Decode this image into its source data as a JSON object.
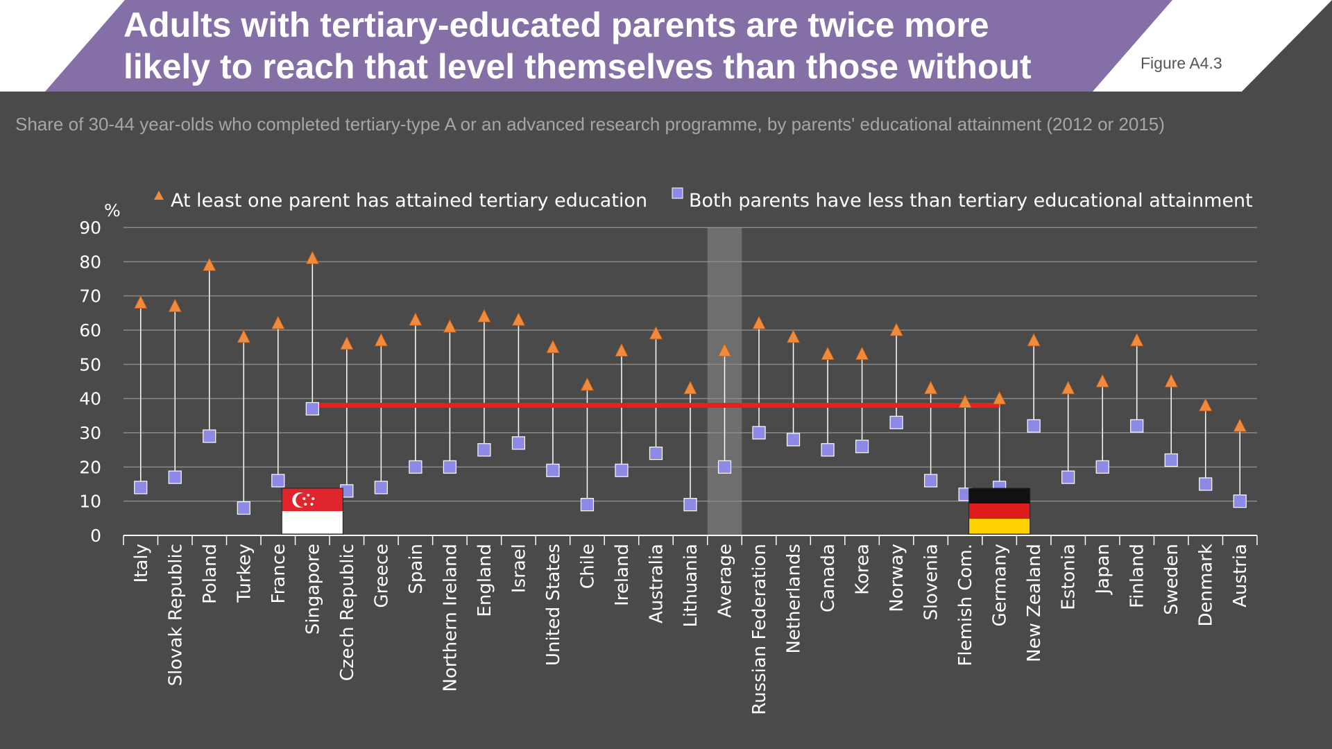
{
  "header": {
    "title_line1": "Adults with tertiary-educated parents are twice more",
    "title_line2": "likely to reach that level themselves than those without",
    "figure_label": "Figure A4.3",
    "subtitle": "Share of 30-44 year-olds who completed tertiary-type A or an advanced research programme, by parents' educational attainment (2012 or 2015)"
  },
  "colors": {
    "header_purple": "#8470a6",
    "triangle": "#f08a3c",
    "square": "#8c8ae6",
    "highlight_line": "#e8201c",
    "average_band": "#6e6e6e",
    "axis": "#ffffff",
    "grid": "#8a8a8a"
  },
  "chart_data": {
    "type": "scatter",
    "ylabel": "%",
    "ylim": [
      0,
      90
    ],
    "yticks": [
      0,
      10,
      20,
      30,
      40,
      50,
      60,
      70,
      80,
      90
    ],
    "grid": true,
    "legend_position": "top",
    "categories": [
      "Italy",
      "Slovak Republic",
      "Poland",
      "Turkey",
      "France",
      "Singapore",
      "Czech Republic",
      "Greece",
      "Spain",
      "Northern Ireland",
      "England",
      "Israel",
      "United States",
      "Chile",
      "Ireland",
      "Australia",
      "Lithuania",
      "Average",
      "Russian Federation",
      "Netherlands",
      "Canada",
      "Korea",
      "Norway",
      "Slovenia",
      "Flemish Com.",
      "Germany",
      "New Zealand",
      "Estonia",
      "Japan",
      "Finland",
      "Sweden",
      "Denmark",
      "Austria"
    ],
    "series": [
      {
        "name": "At least one parent has attained tertiary education",
        "marker": "triangle",
        "values": [
          68,
          67,
          79,
          58,
          62,
          81,
          56,
          57,
          63,
          61,
          64,
          63,
          55,
          44,
          54,
          59,
          43,
          54,
          62,
          58,
          53,
          53,
          60,
          43,
          39,
          40,
          57,
          43,
          45,
          57,
          45,
          38,
          32
        ]
      },
      {
        "name": "Both parents have less than tertiary educational attainment",
        "marker": "square",
        "values": [
          14,
          17,
          29,
          8,
          16,
          37,
          13,
          14,
          20,
          20,
          25,
          27,
          19,
          9,
          19,
          24,
          9,
          20,
          30,
          28,
          25,
          26,
          33,
          16,
          12,
          14,
          32,
          17,
          20,
          32,
          22,
          15,
          10
        ]
      }
    ],
    "highlight": {
      "from_category": "Singapore",
      "to_category": "Germany",
      "value": 38
    },
    "shaded_category": "Average",
    "flags": [
      {
        "category": "Singapore",
        "name": "Singapore flag"
      },
      {
        "category": "Germany",
        "name": "Germany flag"
      }
    ]
  }
}
